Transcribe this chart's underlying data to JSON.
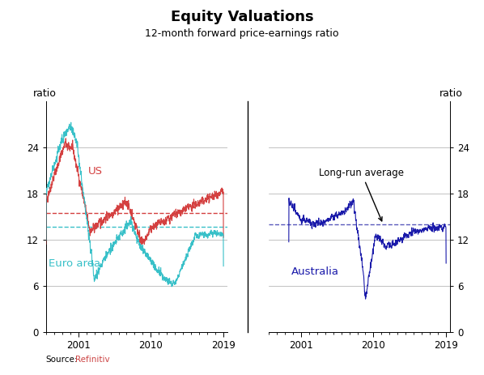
{
  "title": "Equity Valuations",
  "subtitle": "12-month forward price-earnings ratio",
  "ylabel_left": "ratio",
  "ylabel_right": "ratio",
  "source_label": "Source:",
  "source_value": "   Refinitiv",
  "ylim": [
    0,
    30
  ],
  "yticks": [
    0,
    6,
    12,
    18,
    24
  ],
  "us_avg": 15.5,
  "euro_avg": 13.7,
  "aus_avg": 14.0,
  "us_color": "#d44040",
  "euro_color": "#38c0c8",
  "aus_color": "#1a1aaa",
  "us_avg_color": "#d44040",
  "euro_avg_color": "#38c0c8",
  "aus_avg_color": "#5858bb",
  "grid_color": "#aaaaaa",
  "divider_color": "#000000",
  "title_fontsize": 13,
  "subtitle_fontsize": 9,
  "label_fontsize": 9,
  "tick_fontsize": 8.5
}
